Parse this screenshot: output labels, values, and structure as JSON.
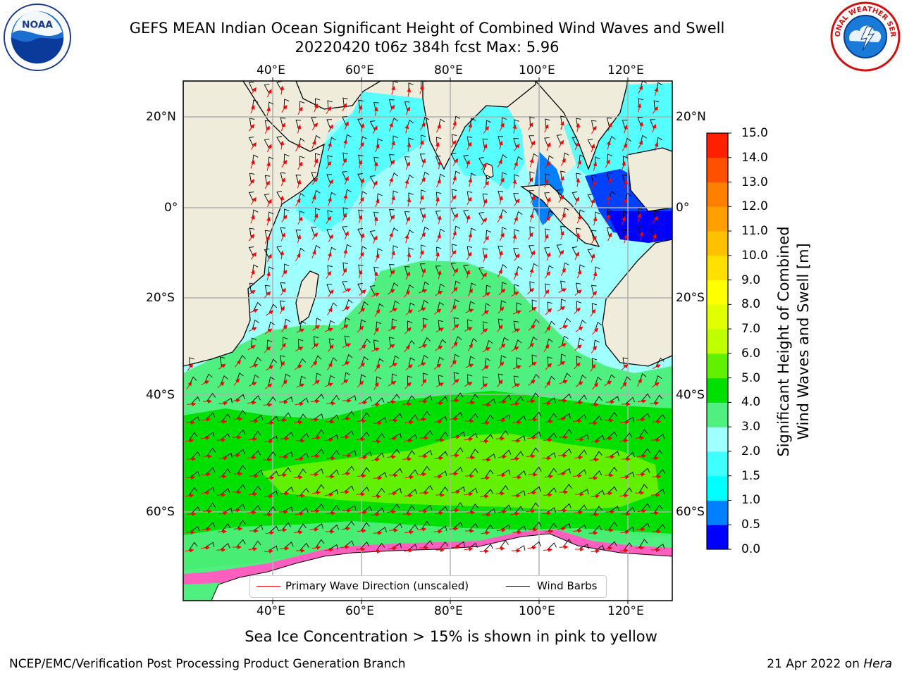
{
  "title_line1": "GEFS MEAN Indian Ocean Significant Height of Combined Wind Waves and Swell",
  "title_line2": "20220420 t06z 384h fcst   Max: 5.96",
  "logos": {
    "left": {
      "icon": "noaa-logo",
      "text": "NOAA"
    },
    "right": {
      "icon": "nws-logo",
      "text": "NATIONAL WEATHER SERVICE"
    }
  },
  "map": {
    "lon_labels": [
      "40°E",
      "60°E",
      "80°E",
      "100°E",
      "120°E"
    ],
    "lat_labels": [
      "20°N",
      "0°",
      "20°S",
      "40°S",
      "60°S"
    ],
    "colors": {
      "land": "#efecdc",
      "sea_ice": "#ffffff",
      "wave_arrow": "#ff0000",
      "wind_barb": "#000000"
    }
  },
  "colorbar": {
    "title_line1": "Significant Height of Combined",
    "title_line2": "Wind Waves and Swell [m]",
    "levels": [
      "0.0",
      "0.5",
      "1.0",
      "1.5",
      "2.0",
      "3.0",
      "4.0",
      "5.0",
      "6.0",
      "7.0",
      "8.0",
      "9.0",
      "10.0",
      "11.0",
      "12.0",
      "13.0",
      "14.0",
      "15.0"
    ],
    "colors": [
      "#0000ff",
      "#0080ff",
      "#00ffff",
      "#40ffff",
      "#a0ffff",
      "#50f080",
      "#00e000",
      "#60f000",
      "#c0ff00",
      "#e0ff00",
      "#ffff00",
      "#ffe000",
      "#ffc000",
      "#ffa000",
      "#ff8000",
      "#ff5000",
      "#ff2000"
    ]
  },
  "legend": {
    "wave_label": "Primary Wave Direction (unscaled)",
    "wind_label": "Wind Barbs"
  },
  "bottom_note": "Sea Ice Concentration > 15% is shown in pink to yellow",
  "credit_left": "NCEP/EMC/Verification Post Processing Product Generation Branch",
  "credit_right_date": "21 Apr 2022 on",
  "credit_right_machine": "Hera"
}
